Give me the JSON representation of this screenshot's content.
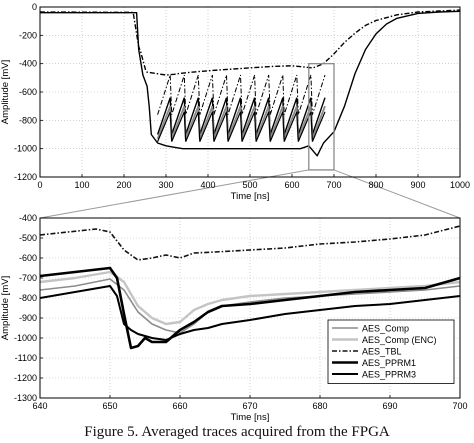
{
  "caption": "Figure 5. Averaged traces acquired from the FPGA",
  "chart_data": [
    {
      "type": "line",
      "xlabel": "Time [ns]",
      "ylabel": "Amplitude [mV]",
      "xlim": [
        0,
        1000
      ],
      "ylim": [
        -1200,
        0
      ],
      "xticks": [
        0,
        100,
        200,
        300,
        400,
        500,
        600,
        700,
        800,
        900,
        1000
      ],
      "yticks": [
        0,
        -200,
        -400,
        -600,
        -800,
        -1000,
        -1200
      ],
      "grid": true,
      "zoom_box": {
        "x": [
          640,
          700
        ],
        "y": [
          -1150,
          -400
        ]
      },
      "series": [
        {
          "style": "dashdot",
          "color": "#000000",
          "x": [
            0,
            220,
            222,
            235,
            240,
            252,
            255,
            300,
            320,
            330,
            360,
            400,
            450,
            500,
            550,
            600,
            650,
            675,
            700,
            725,
            750,
            775,
            800,
            850,
            900,
            950,
            1000
          ],
          "y": [
            -35,
            -38,
            -40,
            -280,
            -320,
            -450,
            -460,
            -480,
            -475,
            -470,
            -460,
            -450,
            -440,
            -430,
            -420,
            -415,
            -430,
            -400,
            -330,
            -250,
            -185,
            -130,
            -95,
            -55,
            -35,
            -28,
            -22
          ]
        },
        {
          "style": "solid",
          "color": "#000000",
          "x": [
            0,
            230,
            235,
            245,
            255,
            260,
            265,
            280,
            300,
            320,
            340,
            360,
            380,
            400,
            420,
            440,
            460,
            480,
            500,
            520,
            540,
            560,
            580,
            600,
            620,
            640,
            660,
            675,
            700,
            725,
            750,
            775,
            800,
            825,
            850,
            900,
            950,
            1000
          ],
          "y": [
            -40,
            -40,
            -300,
            -480,
            -560,
            -700,
            -900,
            -960,
            -980,
            -990,
            -1000,
            -1000,
            -1000,
            -1000,
            -1000,
            -1000,
            -1000,
            -1000,
            -1000,
            -1000,
            -1000,
            -1000,
            -1000,
            -1000,
            -1000,
            -980,
            -1050,
            -960,
            -880,
            -700,
            -470,
            -300,
            -190,
            -120,
            -80,
            -45,
            -35,
            -30
          ]
        }
      ]
    },
    {
      "type": "line",
      "xlabel": "Time [ns]",
      "ylabel": "Amplitude [mV]",
      "xlim": [
        640,
        700
      ],
      "ylim": [
        -1300,
        -400
      ],
      "xticks": [
        640,
        650,
        660,
        670,
        680,
        690,
        700
      ],
      "yticks": [
        -400,
        -500,
        -600,
        -700,
        -800,
        -900,
        -1000,
        -1100,
        -1200,
        -1300
      ],
      "grid": true,
      "legend": "bottom-right",
      "series": [
        {
          "name": "AES_Comp",
          "color": "#8c8c8c",
          "width": 1.6,
          "dash": "",
          "x": [
            640,
            645,
            650,
            652,
            654,
            656,
            658,
            660,
            662,
            664,
            666,
            670,
            675,
            680,
            685,
            690,
            695,
            700
          ],
          "y": [
            -760,
            -740,
            -705,
            -760,
            -870,
            -930,
            -960,
            -975,
            -930,
            -870,
            -840,
            -820,
            -800,
            -790,
            -780,
            -770,
            -760,
            -740
          ]
        },
        {
          "name": "AES_Comp (ENC)",
          "color": "#c4c4c4",
          "width": 2.4,
          "dash": "",
          "x": [
            640,
            645,
            650,
            652,
            654,
            656,
            658,
            660,
            662,
            664,
            666,
            670,
            675,
            680,
            685,
            690,
            695,
            700
          ],
          "y": [
            -720,
            -700,
            -670,
            -720,
            -840,
            -900,
            -930,
            -920,
            -860,
            -830,
            -810,
            -790,
            -780,
            -770,
            -760,
            -750,
            -740,
            -720
          ]
        },
        {
          "name": "AES_TBL",
          "color": "#111111",
          "width": 1.6,
          "dash": "5 2 1.5 2",
          "x": [
            640,
            644,
            648,
            650,
            652,
            654,
            656,
            658,
            660,
            662,
            665,
            670,
            675,
            680,
            685,
            690,
            695,
            700
          ],
          "y": [
            -485,
            -470,
            -455,
            -470,
            -560,
            -610,
            -600,
            -585,
            -600,
            -575,
            -570,
            -560,
            -550,
            -530,
            -520,
            -505,
            -485,
            -440
          ]
        },
        {
          "name": "AES_PPRM1",
          "color": "#000000",
          "width": 2.6,
          "dash": "",
          "x": [
            640,
            645,
            650,
            651,
            652,
            653,
            654,
            655,
            656,
            658,
            660,
            662,
            664,
            666,
            670,
            675,
            680,
            685,
            690,
            695,
            700
          ],
          "y": [
            -690,
            -670,
            -650,
            -700,
            -880,
            -1050,
            -1040,
            -1000,
            -1020,
            -1020,
            -960,
            -920,
            -870,
            -840,
            -830,
            -810,
            -790,
            -770,
            -760,
            -750,
            -700
          ]
        },
        {
          "name": "AES_PPRM3",
          "color": "#000000",
          "width": 2.0,
          "dash": "",
          "x": [
            640,
            645,
            650,
            651,
            652,
            653,
            654,
            656,
            658,
            660,
            662,
            664,
            666,
            670,
            675,
            680,
            685,
            690,
            695,
            700
          ],
          "y": [
            -800,
            -770,
            -740,
            -790,
            -930,
            -960,
            -980,
            -1000,
            -1010,
            -980,
            -960,
            -950,
            -930,
            -910,
            -880,
            -860,
            -840,
            -830,
            -810,
            -790
          ]
        }
      ]
    }
  ]
}
